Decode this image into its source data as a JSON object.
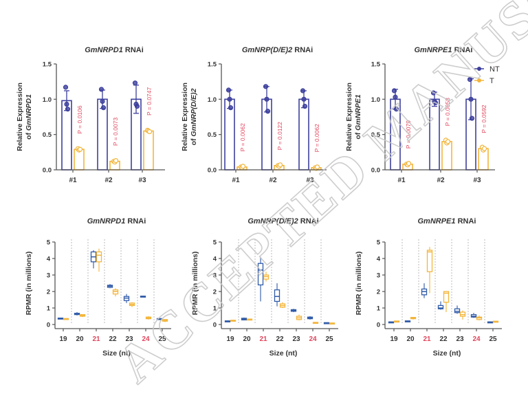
{
  "colors": {
    "NT": "#3c3f9c",
    "T": "#f3b53a",
    "NT_box": "#2f5aa8",
    "highlight": "#e0455c",
    "axis": "#555555",
    "watermark": "#c8c8c8"
  },
  "legend": [
    {
      "label": "NT",
      "color_key": "NT"
    },
    {
      "label": "T",
      "color_key": "T"
    }
  ],
  "watermark": "ACCEPTED MANUSCRIPT",
  "chart_data": [
    {
      "type": "bar",
      "title_gene": "GmNRPD1",
      "title_suffix": " RNAi",
      "ylabel_line1": "Relative Expression",
      "ylabel_line2_prefix": "of ",
      "ylabel_gene": "GmNRPD1",
      "ylim": [
        0,
        1.5
      ],
      "yticks": [
        "0.0",
        "0.5",
        "1.0",
        "1.5"
      ],
      "categories": [
        "#1",
        "#2",
        "#3"
      ],
      "series": [
        {
          "name": "NT",
          "values": [
            0.98,
            1.0,
            1.0
          ],
          "err": [
            0.14,
            0.13,
            0.2
          ],
          "points": [
            [
              1.17,
              0.93,
              0.86
            ],
            [
              1.14,
              0.97,
              0.88
            ],
            [
              1.23,
              0.93,
              0.9
            ]
          ]
        },
        {
          "name": "T",
          "values": [
            0.29,
            0.12,
            0.55
          ],
          "err": [
            0.02,
            0.01,
            0.01
          ],
          "points": [
            [
              0.3,
              0.28,
              0.29
            ],
            [
              0.12,
              0.11,
              0.13
            ],
            [
              0.56,
              0.55,
              0.54
            ]
          ]
        }
      ],
      "p_values": [
        "P = 0.0106",
        "P = 0.0073",
        "P = 0.0747"
      ]
    },
    {
      "type": "bar",
      "title_gene": "GmNRP(D/E)2",
      "title_suffix": " RNAi",
      "ylabel_line1": "Relative Expression",
      "ylabel_line2_prefix": "of ",
      "ylabel_gene": "GmNRP(D/E)2",
      "ylim": [
        0,
        1.5
      ],
      "yticks": [
        "0.0",
        "0.5",
        "1.0",
        "1.5"
      ],
      "categories": [
        "#1",
        "#2",
        "#3"
      ],
      "series": [
        {
          "name": "NT",
          "values": [
            1.0,
            1.0,
            1.0
          ],
          "err": [
            0.13,
            0.18,
            0.12
          ],
          "points": [
            [
              1.13,
              1.0,
              0.88
            ],
            [
              1.18,
              1.0,
              0.83
            ],
            [
              1.12,
              1.0,
              0.9
            ]
          ]
        },
        {
          "name": "T",
          "values": [
            0.04,
            0.06,
            0.03
          ],
          "err": [
            0.01,
            0.01,
            0.01
          ],
          "points": [
            [
              0.04,
              0.03,
              0.05
            ],
            [
              0.06,
              0.05,
              0.07
            ],
            [
              0.03,
              0.02,
              0.04
            ]
          ]
        }
      ],
      "p_values": [
        "P = 0.0062",
        "P = 0.0122",
        "P = 0.0062"
      ]
    },
    {
      "type": "bar",
      "title_gene": "GmNRPE1",
      "title_suffix": " RNAi",
      "ylabel_line1": "Relative Expression",
      "ylabel_line2_prefix": "of ",
      "ylabel_gene": "GmNRPE1",
      "ylim": [
        0,
        1.5
      ],
      "yticks": [
        "0.0",
        "0.5",
        "1.0",
        "1.5"
      ],
      "categories": [
        "#1",
        "#2",
        "#3"
      ],
      "series": [
        {
          "name": "NT",
          "values": [
            1.0,
            1.0,
            1.0
          ],
          "err": [
            0.14,
            0.1,
            0.29
          ],
          "points": [
            [
              1.12,
              1.03,
              0.86
            ],
            [
              1.09,
              0.97,
              0.95
            ],
            [
              1.28,
              1.0,
              0.73
            ]
          ]
        },
        {
          "name": "T",
          "values": [
            0.08,
            0.4,
            0.3
          ],
          "err": [
            0.01,
            0.02,
            0.02
          ],
          "points": [
            [
              0.08,
              0.07,
              0.09
            ],
            [
              0.42,
              0.38,
              0.4
            ],
            [
              0.32,
              0.28,
              0.3
            ]
          ]
        }
      ],
      "p_values": [
        "P = 0.0079",
        "P = 0.0058",
        "P = 0.0592"
      ]
    },
    {
      "type": "box",
      "title_gene": "GmNRPD1",
      "title_suffix": " RNAi",
      "ylabel": "RPMR (in millions)",
      "xlabel": "Size (nt)",
      "ylim": [
        0,
        5
      ],
      "yticks": [
        "0",
        "1",
        "2",
        "3",
        "4",
        "5"
      ],
      "categories": [
        "19",
        "20",
        "21",
        "22",
        "23",
        "24",
        "25"
      ],
      "highlight_categories": [
        "21",
        "24"
      ],
      "series": [
        {
          "name": "NT",
          "boxes": [
            [
              0.35,
              0.37,
              0.38,
              0.39,
              0.4
            ],
            [
              0.55,
              0.6,
              0.63,
              0.68,
              0.75
            ],
            [
              3.4,
              3.8,
              4.1,
              4.4,
              4.5
            ],
            [
              2.2,
              2.25,
              2.32,
              2.38,
              2.45
            ],
            [
              1.3,
              1.45,
              1.6,
              1.7,
              1.85
            ],
            [
              1.65,
              1.68,
              1.7,
              1.72,
              1.75
            ],
            [
              0.3,
              0.32,
              0.34,
              0.36,
              0.38
            ]
          ]
        },
        {
          "name": "T",
          "boxes": [
            [
              0.33,
              0.34,
              0.35,
              0.36,
              0.37
            ],
            [
              0.45,
              0.5,
              0.55,
              0.6,
              0.62
            ],
            [
              3.2,
              3.8,
              4.2,
              4.4,
              4.6
            ],
            [
              1.7,
              1.85,
              2.0,
              2.1,
              2.2
            ],
            [
              1.05,
              1.15,
              1.22,
              1.3,
              1.35
            ],
            [
              0.3,
              0.35,
              0.4,
              0.45,
              0.5
            ],
            [
              0.15,
              0.2,
              0.25,
              0.3,
              0.32
            ]
          ]
        }
      ]
    },
    {
      "type": "box",
      "title_gene": "GmNRP(D/E)2",
      "title_suffix": " RNAi",
      "ylabel": "RPMR (in millions)",
      "xlabel": "Size (nt)",
      "ylim": [
        0,
        5
      ],
      "yticks": [
        "0",
        "1",
        "2",
        "3",
        "4",
        "5"
      ],
      "categories": [
        "19",
        "20",
        "21",
        "22",
        "23",
        "24",
        "25"
      ],
      "highlight_categories": [
        "21",
        "24"
      ],
      "series": [
        {
          "name": "NT",
          "boxes": [
            [
              0.15,
              0.18,
              0.2,
              0.22,
              0.25
            ],
            [
              0.25,
              0.28,
              0.32,
              0.38,
              0.42
            ],
            [
              1.4,
              2.4,
              3.3,
              3.7,
              4.1
            ],
            [
              1.1,
              1.4,
              1.7,
              2.1,
              2.5
            ],
            [
              0.75,
              0.8,
              0.85,
              0.9,
              0.95
            ],
            [
              0.3,
              0.35,
              0.4,
              0.45,
              0.5
            ],
            [
              0.08,
              0.09,
              0.1,
              0.11,
              0.12
            ]
          ]
        },
        {
          "name": "T",
          "boxes": [
            [
              0.2,
              0.22,
              0.24,
              0.26,
              0.28
            ],
            [
              0.28,
              0.3,
              0.31,
              0.33,
              0.35
            ],
            [
              2.6,
              2.75,
              2.9,
              3.0,
              3.2
            ],
            [
              1.0,
              1.05,
              1.15,
              1.25,
              1.35
            ],
            [
              0.25,
              0.3,
              0.4,
              0.5,
              0.6
            ],
            [
              0.1,
              0.11,
              0.12,
              0.13,
              0.15
            ],
            [
              0.06,
              0.07,
              0.08,
              0.09,
              0.1
            ]
          ]
        }
      ]
    },
    {
      "type": "box",
      "title_gene": "GmNRPE1",
      "title_suffix": " RNAi",
      "ylabel": "RPMR (in millions)",
      "xlabel": "Size (nt)",
      "ylim": [
        0,
        5
      ],
      "yticks": [
        "0",
        "1",
        "2",
        "3",
        "4",
        "5"
      ],
      "categories": [
        "19",
        "20",
        "21",
        "22",
        "23",
        "24",
        "25"
      ],
      "highlight_categories": [
        "21",
        "24"
      ],
      "series": [
        {
          "name": "NT",
          "boxes": [
            [
              0.12,
              0.13,
              0.15,
              0.16,
              0.18
            ],
            [
              0.18,
              0.19,
              0.2,
              0.22,
              0.24
            ],
            [
              1.6,
              1.8,
              2.0,
              2.15,
              2.5
            ],
            [
              0.9,
              0.95,
              1.0,
              1.15,
              1.4
            ],
            [
              0.65,
              0.72,
              0.8,
              0.95,
              1.15
            ],
            [
              0.4,
              0.45,
              0.5,
              0.6,
              0.7
            ],
            [
              0.1,
              0.12,
              0.14,
              0.16,
              0.18
            ]
          ]
        },
        {
          "name": "T",
          "boxes": [
            [
              0.18,
              0.19,
              0.2,
              0.21,
              0.22
            ],
            [
              0.3,
              0.35,
              0.4,
              0.43,
              0.45
            ],
            [
              1.9,
              3.2,
              4.4,
              4.5,
              4.7
            ],
            [
              0.75,
              1.35,
              1.9,
              2.0,
              2.0
            ],
            [
              0.3,
              0.5,
              0.6,
              0.75,
              0.85
            ],
            [
              0.25,
              0.3,
              0.4,
              0.45,
              0.55
            ],
            [
              0.14,
              0.16,
              0.18,
              0.2,
              0.22
            ]
          ]
        }
      ]
    }
  ]
}
